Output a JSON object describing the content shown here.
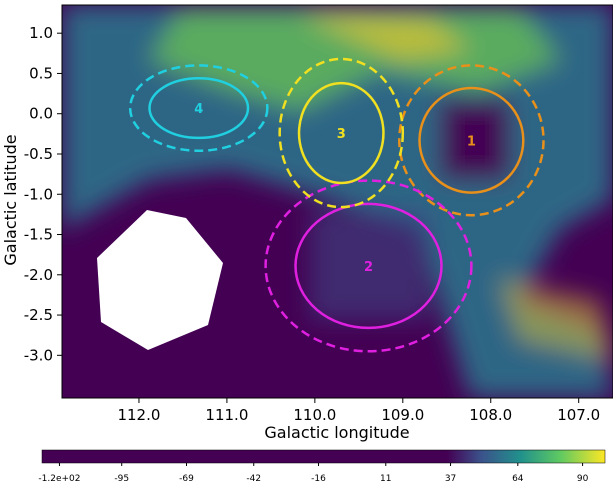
{
  "chart_data": {
    "type": "image",
    "x_label": "Galactic longitude",
    "y_label": "Galactic latitude",
    "xlim": [
      112.875,
      106.61
    ],
    "ylim": [
      -3.53,
      1.35
    ],
    "xticks": [
      {
        "value": 112,
        "label": "112.0"
      },
      {
        "value": 111,
        "label": "111.0"
      },
      {
        "value": 110,
        "label": "110.0"
      },
      {
        "value": 109,
        "label": "109.0"
      },
      {
        "value": 108,
        "label": "108.0"
      },
      {
        "value": 107,
        "label": "107.0"
      }
    ],
    "yticks": [
      {
        "value": 1,
        "label": "1.0"
      },
      {
        "value": 0.5,
        "label": "0.5"
      },
      {
        "value": 0,
        "label": "0.0"
      },
      {
        "value": -0.5,
        "label": "-0.5"
      },
      {
        "value": -1,
        "label": "-1.0"
      },
      {
        "value": -1.5,
        "label": "-1.5"
      },
      {
        "value": -2,
        "label": "-2.0"
      },
      {
        "value": -2.5,
        "label": "-2.5"
      },
      {
        "value": -3,
        "label": "-3.0"
      }
    ],
    "colorbar_lim": [
      -127,
      99
    ],
    "colorbar_ticks": [
      {
        "value": -120,
        "label": "-1.2e+02"
      },
      -95,
      -69,
      -42,
      -16,
      11,
      37,
      64,
      90
    ],
    "regions": [
      {
        "label": "1",
        "color": "#e8901a",
        "lon": 108.22,
        "lat": -0.33,
        "inner": [
          0.59,
          0.65
        ],
        "outer": [
          0.82,
          0.93
        ]
      },
      {
        "label": "2",
        "color": "#e020e0",
        "lon": 109.39,
        "lat": -1.89,
        "inner": [
          0.83,
          0.77
        ],
        "outer": [
          1.17,
          1.06
        ]
      },
      {
        "label": "3",
        "color": "#f0e020",
        "lon": 109.7,
        "lat": -0.24,
        "inner": [
          0.48,
          0.62
        ],
        "outer": [
          0.7,
          0.92
        ]
      },
      {
        "label": "4",
        "color": "#20d0e0",
        "lon": 111.32,
        "lat": 0.07,
        "inner": [
          0.56,
          0.37
        ],
        "outer": [
          0.78,
          0.53
        ]
      }
    ]
  }
}
